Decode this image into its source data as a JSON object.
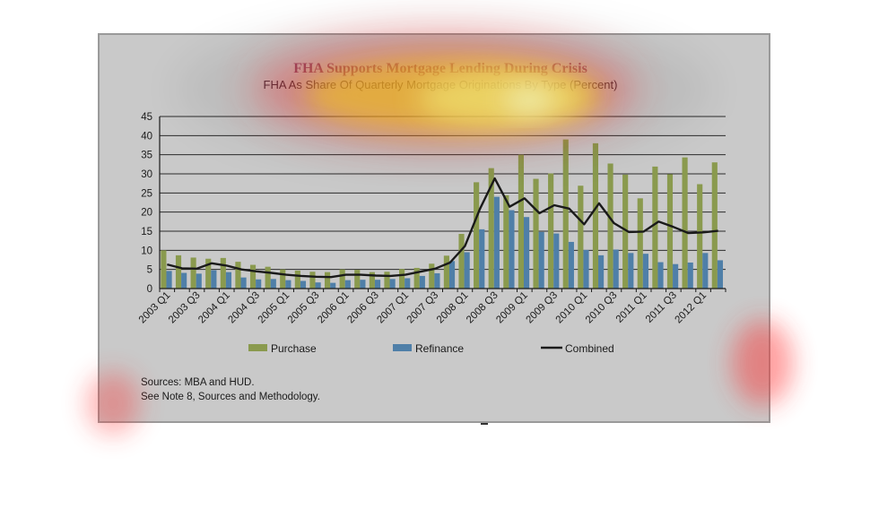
{
  "chart_data": {
    "type": "bar",
    "title": "FHA Supports Mortgage Lending During Crisis",
    "subtitle": "FHA As Share Of Quarterly Mortgage Originations By Type (Percent)",
    "x_tick_labels": [
      "2003 Q1",
      "2003 Q3",
      "2004 Q1",
      "2004 Q3",
      "2005 Q1",
      "2005 Q3",
      "2006 Q1",
      "2006 Q3",
      "2007 Q1",
      "2007 Q3",
      "2008 Q1",
      "2008 Q3",
      "2009 Q1",
      "2009 Q3",
      "2010 Q1",
      "2010 Q3",
      "2011 Q1",
      "2011 Q3",
      "2012 Q1"
    ],
    "categories": [
      "2003 Q1",
      "2003 Q2",
      "2003 Q3",
      "2003 Q4",
      "2004 Q1",
      "2004 Q2",
      "2004 Q3",
      "2004 Q4",
      "2005 Q1",
      "2005 Q2",
      "2005 Q3",
      "2005 Q4",
      "2006 Q1",
      "2006 Q2",
      "2006 Q3",
      "2006 Q4",
      "2007 Q1",
      "2007 Q2",
      "2007 Q3",
      "2007 Q4",
      "2008 Q1",
      "2008 Q2",
      "2008 Q3",
      "2008 Q4",
      "2009 Q1",
      "2009 Q2",
      "2009 Q3",
      "2009 Q4",
      "2010 Q1",
      "2010 Q2",
      "2010 Q3",
      "2010 Q4",
      "2011 Q1",
      "2011 Q2",
      "2011 Q3",
      "2011 Q4",
      "2012 Q1",
      "2012 Q2"
    ],
    "series": [
      {
        "name": "Purchase",
        "kind": "bar",
        "color": "#8a9a4e",
        "values": [
          10,
          8.7,
          8.1,
          7.8,
          8,
          7,
          6.2,
          5.7,
          5,
          4.7,
          4.4,
          4.3,
          5,
          4.9,
          4.3,
          4.4,
          5.1,
          5.4,
          6.5,
          8.6,
          14.3,
          27.8,
          31.5,
          24.4,
          35,
          28.7,
          30.1,
          39,
          26.9,
          38,
          32.7,
          29.8,
          23.6,
          31.9,
          29.9,
          34.3,
          27.3,
          33
        ]
      },
      {
        "name": "Refinance",
        "kind": "bar",
        "color": "#4f7fa8",
        "values": [
          4.6,
          4.1,
          3.9,
          4.8,
          4.3,
          2.9,
          2.4,
          2.5,
          2.2,
          2,
          1.6,
          1.5,
          2.2,
          2.3,
          2.3,
          2.5,
          2.7,
          3.3,
          4,
          7.2,
          9.5,
          15.5,
          24,
          20.5,
          18.7,
          14.8,
          14.4,
          12.2,
          10.1,
          8.7,
          10.2,
          9.3,
          9.1,
          6.9,
          6.4,
          6.8,
          9.3,
          7.4
        ]
      },
      {
        "name": "Combined",
        "kind": "line",
        "color": "#1a1a1a",
        "values": [
          6.3,
          5.3,
          5.2,
          6.6,
          6,
          5,
          4.5,
          4.1,
          3.6,
          3.3,
          3.1,
          3,
          3.6,
          3.6,
          3.4,
          3.3,
          3.6,
          4.4,
          5.2,
          6.8,
          11.1,
          20.8,
          28.8,
          21.4,
          23.6,
          19.7,
          21.8,
          20.9,
          16.8,
          22.3,
          17.1,
          14.8,
          14.9,
          17.5,
          16.1,
          14.5,
          14.7,
          15.1
        ]
      }
    ],
    "ylim": [
      0,
      45
    ],
    "y_ticks": [
      0,
      5,
      10,
      15,
      20,
      25,
      30,
      35,
      40,
      45
    ],
    "grid": true,
    "legend_position": "bottom"
  },
  "sources": {
    "line1": "Sources:  MBA and HUD.",
    "line2": "See Note 8, Sources and Methodology."
  }
}
